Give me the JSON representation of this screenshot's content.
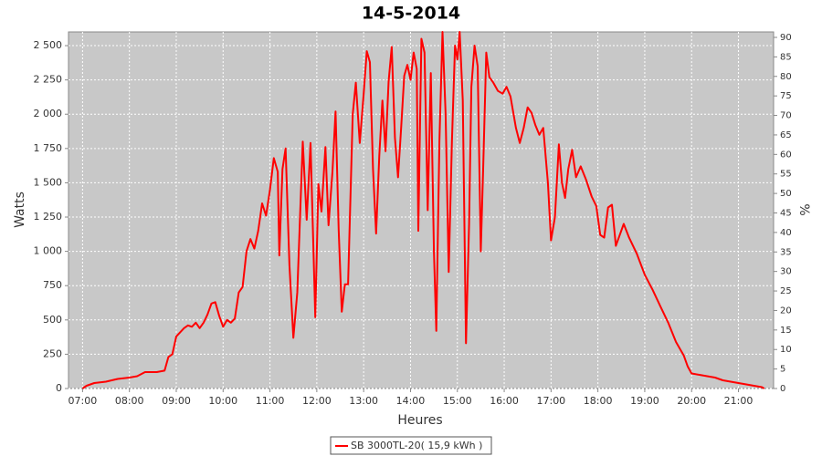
{
  "chart_data": {
    "type": "line",
    "title": "14-5-2014",
    "x_label": "Heures",
    "y_label": "Watts",
    "y2_label": "%",
    "grid": true,
    "legend": "bottom",
    "x": [
      "07:00",
      "07:05",
      "07:15",
      "07:30",
      "07:45",
      "08:00",
      "08:10",
      "08:20",
      "08:35",
      "08:45",
      "08:50",
      "08:55",
      "09:00",
      "09:05",
      "09:10",
      "09:15",
      "09:20",
      "09:25",
      "09:30",
      "09:35",
      "09:40",
      "09:45",
      "09:50",
      "09:55",
      "10:00",
      "10:05",
      "10:10",
      "10:15",
      "10:20",
      "10:25",
      "10:30",
      "10:35",
      "10:40",
      "10:45",
      "10:50",
      "10:55",
      "11:00",
      "11:05",
      "11:10",
      "11:12",
      "11:16",
      "11:20",
      "11:25",
      "11:30",
      "11:35",
      "11:42",
      "11:47",
      "11:52",
      "11:58",
      "12:02",
      "12:06",
      "12:11",
      "12:15",
      "12:20",
      "12:24",
      "12:28",
      "12:32",
      "12:36",
      "12:40",
      "12:46",
      "12:50",
      "12:55",
      "13:00",
      "13:04",
      "13:08",
      "13:12",
      "13:16",
      "13:20",
      "13:24",
      "13:28",
      "13:32",
      "13:36",
      "13:40",
      "13:44",
      "13:48",
      "13:52",
      "13:56",
      "14:00",
      "14:04",
      "14:08",
      "14:10",
      "14:14",
      "14:18",
      "14:22",
      "14:26",
      "14:30",
      "14:33",
      "14:37",
      "14:41",
      "14:45",
      "14:49",
      "14:53",
      "14:57",
      "15:00",
      "15:03",
      "15:07",
      "15:11",
      "15:15",
      "15:18",
      "15:22",
      "15:26",
      "15:30",
      "15:33",
      "15:37",
      "15:41",
      "15:46",
      "15:52",
      "15:58",
      "16:03",
      "16:08",
      "16:15",
      "16:20",
      "16:25",
      "16:30",
      "16:35",
      "16:40",
      "16:45",
      "16:50",
      "16:56",
      "17:00",
      "17:05",
      "17:10",
      "17:14",
      "17:18",
      "17:22",
      "17:27",
      "17:32",
      "17:38",
      "17:45",
      "17:52",
      "17:58",
      "18:03",
      "18:08",
      "18:13",
      "18:18",
      "18:23",
      "18:28",
      "18:33",
      "18:40",
      "18:50",
      "19:00",
      "19:10",
      "19:20",
      "19:30",
      "19:40",
      "19:50",
      "19:55",
      "20:00",
      "20:10",
      "20:20",
      "20:30",
      "20:40",
      "20:50",
      "21:00",
      "21:10",
      "21:20",
      "21:30",
      "21:33"
    ],
    "series": [
      {
        "name": "SB 3000TL-20( 15,9 kWh )",
        "color": "#ff0000",
        "values": [
          0,
          20,
          40,
          50,
          70,
          80,
          90,
          120,
          120,
          130,
          230,
          250,
          380,
          410,
          440,
          460,
          450,
          480,
          440,
          480,
          540,
          620,
          630,
          530,
          450,
          500,
          480,
          510,
          700,
          740,
          1000,
          1090,
          1020,
          1150,
          1350,
          1260,
          1450,
          1680,
          1580,
          970,
          1600,
          1750,
          900,
          370,
          700,
          1800,
          1230,
          1790,
          520,
          1490,
          1290,
          1760,
          1190,
          1580,
          2020,
          1160,
          560,
          760,
          760,
          2000,
          2230,
          1790,
          2150,
          2460,
          2380,
          1600,
          1130,
          1700,
          2100,
          1730,
          2240,
          2490,
          1830,
          1540,
          1900,
          2280,
          2360,
          2250,
          2450,
          2330,
          1150,
          2550,
          2450,
          1300,
          2300,
          1000,
          420,
          1800,
          2600,
          2000,
          850,
          1800,
          2500,
          2400,
          2600,
          2100,
          330,
          1200,
          2200,
          2500,
          2350,
          1000,
          1600,
          2450,
          2270,
          2230,
          2170,
          2150,
          2200,
          2130,
          1900,
          1790,
          1900,
          2050,
          2010,
          1920,
          1850,
          1900,
          1500,
          1080,
          1250,
          1780,
          1500,
          1390,
          1600,
          1740,
          1540,
          1620,
          1520,
          1400,
          1330,
          1120,
          1100,
          1320,
          1340,
          1040,
          1120,
          1200,
          1100,
          980,
          830,
          720,
          600,
          480,
          340,
          240,
          160,
          110,
          100,
          90,
          80,
          60,
          50,
          40,
          30,
          20,
          10,
          0
        ]
      }
    ],
    "xlim": [
      "06:42",
      "21:45"
    ],
    "xticks": [
      "07:00",
      "08:00",
      "09:00",
      "10:00",
      "11:00",
      "12:00",
      "13:00",
      "14:00",
      "15:00",
      "16:00",
      "17:00",
      "18:00",
      "19:00",
      "20:00",
      "21:00"
    ],
    "ylim": [
      0,
      2600
    ],
    "yticks": [
      0,
      250,
      500,
      750,
      {
        "value": 1000,
        "label": "1 000"
      },
      {
        "value": 1250,
        "label": "1 250"
      },
      {
        "value": 1500,
        "label": "1 500"
      },
      {
        "value": 1750,
        "label": "1 750"
      },
      {
        "value": 2000,
        "label": "2 000"
      },
      {
        "value": 2250,
        "label": "2 250"
      },
      {
        "value": 2500,
        "label": "2 500"
      }
    ],
    "y2lim": [
      0,
      91.4
    ],
    "y2ticks": [
      0,
      5,
      10,
      15,
      20,
      25,
      30,
      35,
      40,
      45,
      50,
      55,
      60,
      65,
      70,
      75,
      80,
      85,
      90
    ]
  }
}
